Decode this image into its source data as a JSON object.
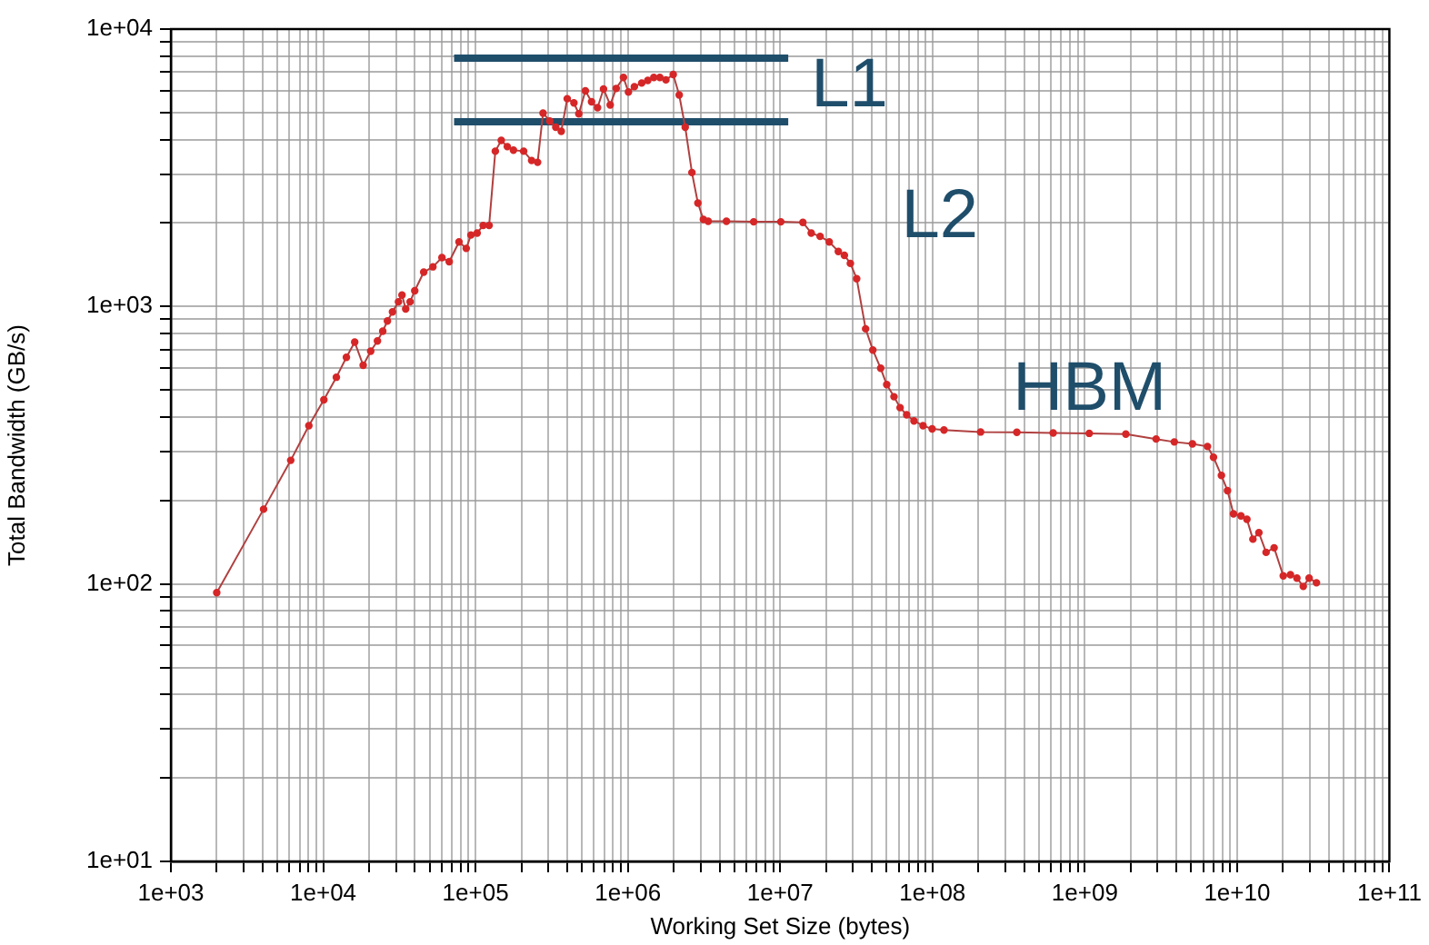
{
  "chart_data": {
    "type": "line",
    "xlabel": "Working Set Size (bytes)",
    "ylabel": "Total Bandwidth (GB/s)",
    "log": "xy",
    "grid": true,
    "legend": false,
    "marker": "circle",
    "line_style": "solid",
    "xlim": [
      1000,
      100000000000
    ],
    "ylim": [
      10,
      10000
    ],
    "xticks": [
      {
        "value": 1000,
        "label": "1e+03"
      },
      {
        "value": 2000,
        "label": null
      },
      {
        "value": 3000,
        "label": null
      },
      {
        "value": 4000,
        "label": null
      },
      {
        "value": 5000,
        "label": null
      },
      {
        "value": 6000,
        "label": null
      },
      {
        "value": 7000,
        "label": null
      },
      {
        "value": 8000,
        "label": null
      },
      {
        "value": 9000,
        "label": null
      },
      {
        "value": 10000,
        "label": "1e+04"
      },
      {
        "value": 20000,
        "label": null
      },
      {
        "value": 30000,
        "label": null
      },
      {
        "value": 40000,
        "label": null
      },
      {
        "value": 50000,
        "label": null
      },
      {
        "value": 60000,
        "label": null
      },
      {
        "value": 70000,
        "label": null
      },
      {
        "value": 80000,
        "label": null
      },
      {
        "value": 90000,
        "label": null
      },
      {
        "value": 100000,
        "label": "1e+05"
      },
      {
        "value": 200000,
        "label": null
      },
      {
        "value": 300000,
        "label": null
      },
      {
        "value": 400000,
        "label": null
      },
      {
        "value": 500000,
        "label": null
      },
      {
        "value": 600000,
        "label": null
      },
      {
        "value": 700000,
        "label": null
      },
      {
        "value": 800000,
        "label": null
      },
      {
        "value": 900000,
        "label": null
      },
      {
        "value": 1000000,
        "label": "1e+06"
      },
      {
        "value": 2000000,
        "label": null
      },
      {
        "value": 3000000,
        "label": null
      },
      {
        "value": 4000000,
        "label": null
      },
      {
        "value": 5000000,
        "label": null
      },
      {
        "value": 6000000,
        "label": null
      },
      {
        "value": 7000000,
        "label": null
      },
      {
        "value": 8000000,
        "label": null
      },
      {
        "value": 9000000,
        "label": null
      },
      {
        "value": 10000000,
        "label": "1e+07"
      },
      {
        "value": 20000000,
        "label": null
      },
      {
        "value": 30000000,
        "label": null
      },
      {
        "value": 40000000,
        "label": null
      },
      {
        "value": 50000000,
        "label": null
      },
      {
        "value": 60000000,
        "label": null
      },
      {
        "value": 70000000,
        "label": null
      },
      {
        "value": 80000000,
        "label": null
      },
      {
        "value": 90000000,
        "label": null
      },
      {
        "value": 100000000,
        "label": "1e+08"
      },
      {
        "value": 200000000,
        "label": null
      },
      {
        "value": 300000000,
        "label": null
      },
      {
        "value": 400000000,
        "label": null
      },
      {
        "value": 500000000,
        "label": null
      },
      {
        "value": 600000000,
        "label": null
      },
      {
        "value": 700000000,
        "label": null
      },
      {
        "value": 800000000,
        "label": null
      },
      {
        "value": 900000000,
        "label": null
      },
      {
        "value": 1000000000,
        "label": "1e+09"
      },
      {
        "value": 2000000000,
        "label": null
      },
      {
        "value": 3000000000,
        "label": null
      },
      {
        "value": 4000000000,
        "label": null
      },
      {
        "value": 5000000000,
        "label": null
      },
      {
        "value": 6000000000,
        "label": null
      },
      {
        "value": 7000000000,
        "label": null
      },
      {
        "value": 8000000000,
        "label": null
      },
      {
        "value": 9000000000,
        "label": null
      },
      {
        "value": 10000000000,
        "label": "1e+10"
      },
      {
        "value": 20000000000,
        "label": null
      },
      {
        "value": 30000000000,
        "label": null
      },
      {
        "value": 40000000000,
        "label": null
      },
      {
        "value": 50000000000,
        "label": null
      },
      {
        "value": 60000000000,
        "label": null
      },
      {
        "value": 70000000000,
        "label": null
      },
      {
        "value": 80000000000,
        "label": null
      },
      {
        "value": 90000000000,
        "label": null
      },
      {
        "value": 100000000000,
        "label": "1e+11"
      }
    ],
    "yticks": [
      {
        "value": 10,
        "label": "1e+01"
      },
      {
        "value": 20,
        "label": null
      },
      {
        "value": 30,
        "label": null
      },
      {
        "value": 40,
        "label": null
      },
      {
        "value": 50,
        "label": null
      },
      {
        "value": 60,
        "label": null
      },
      {
        "value": 70,
        "label": null
      },
      {
        "value": 80,
        "label": null
      },
      {
        "value": 90,
        "label": null
      },
      {
        "value": 100,
        "label": "1e+02"
      },
      {
        "value": 200,
        "label": null
      },
      {
        "value": 300,
        "label": null
      },
      {
        "value": 400,
        "label": null
      },
      {
        "value": 500,
        "label": null
      },
      {
        "value": 600,
        "label": null
      },
      {
        "value": 700,
        "label": null
      },
      {
        "value": 800,
        "label": null
      },
      {
        "value": 900,
        "label": null
      },
      {
        "value": 1000,
        "label": "1e+03"
      },
      {
        "value": 2000,
        "label": null
      },
      {
        "value": 3000,
        "label": null
      },
      {
        "value": 4000,
        "label": null
      },
      {
        "value": 5000,
        "label": null
      },
      {
        "value": 6000,
        "label": null
      },
      {
        "value": 7000,
        "label": null
      },
      {
        "value": 8000,
        "label": null
      },
      {
        "value": 9000,
        "label": null
      },
      {
        "value": 10000,
        "label": "1e+04"
      }
    ],
    "series": [
      {
        "color": "#d62728",
        "x": [
          2000,
          4060,
          6120,
          8050,
          10100,
          12200,
          14200,
          16100,
          18300,
          20500,
          22700,
          24600,
          26400,
          28500,
          31200,
          32900,
          34800,
          37200,
          39900,
          45700,
          52500,
          60200,
          67200,
          77900,
          86900,
          93300,
          102500,
          112200,
          122800,
          134900,
          147600,
          161700,
          177400,
          207000,
          233500,
          255600,
          277500,
          307000,
          336500,
          365500,
          400000,
          442600,
          476600,
          526300,
          577800,
          632400,
          692400,
          766000,
          839000,
          936000,
          1009000,
          1104000,
          1233000,
          1352000,
          1481000,
          1622000,
          1778000,
          1986000,
          2174000,
          2381000,
          2635000,
          2884000,
          3133000,
          3370000,
          4440000,
          6700000,
          10100000,
          14100000,
          16000000,
          18300000,
          21000000,
          24100000,
          26400000,
          28900000,
          31800000,
          36400000,
          40600000,
          45700000,
          50100000,
          55900000,
          61300000,
          67700000,
          75600000,
          86700000,
          99500000,
          119000000,
          207000000,
          358000000,
          620000000,
          1070000000,
          1860000000,
          2940000000,
          3870000000,
          5090000000,
          6390000000,
          7000000000,
          7890000000,
          8650000000,
          9470000000,
          10600000000,
          11600000000,
          12700000000,
          13900000000,
          15500000000,
          17500000000,
          20100000000,
          22400000000,
          24700000000,
          27200000000,
          29700000000,
          33200000000
        ],
        "values": [
          93,
          186,
          279,
          372,
          461,
          556,
          656,
          744,
          614,
          690,
          751,
          815,
          887,
          956,
          1040,
          1100,
          980,
          1040,
          1140,
          1330,
          1390,
          1500,
          1450,
          1710,
          1620,
          1810,
          1840,
          1960,
          1960,
          3630,
          3970,
          3770,
          3660,
          3630,
          3360,
          3310,
          4980,
          4660,
          4430,
          4280,
          5610,
          5420,
          4950,
          5990,
          5470,
          5210,
          6080,
          5330,
          6110,
          6690,
          5930,
          6200,
          6390,
          6530,
          6690,
          6690,
          6560,
          6860,
          5790,
          4430,
          3040,
          2360,
          2060,
          2030,
          2030,
          2020,
          2020,
          2010,
          1840,
          1790,
          1710,
          1580,
          1530,
          1430,
          1260,
          831,
          697,
          599,
          523,
          473,
          432,
          407,
          387,
          372,
          362,
          359,
          353,
          352,
          350,
          349,
          347,
          333,
          325,
          320,
          313,
          286,
          246,
          217,
          179,
          176,
          171,
          145,
          153,
          130,
          135,
          107,
          108,
          105,
          98,
          105,
          101
        ]
      },
      {
        "color": "#1f4e6b",
        "marker": "none",
        "x": [
          72300,
          11300000
        ],
        "values": [
          7850,
          7850
        ]
      },
      {
        "color": "#1f4e6b",
        "marker": "none",
        "x": [
          72300,
          11300000
        ],
        "values": [
          4630,
          4630
        ]
      }
    ],
    "annotations": [
      "L1",
      "L2",
      "HBM"
    ]
  }
}
